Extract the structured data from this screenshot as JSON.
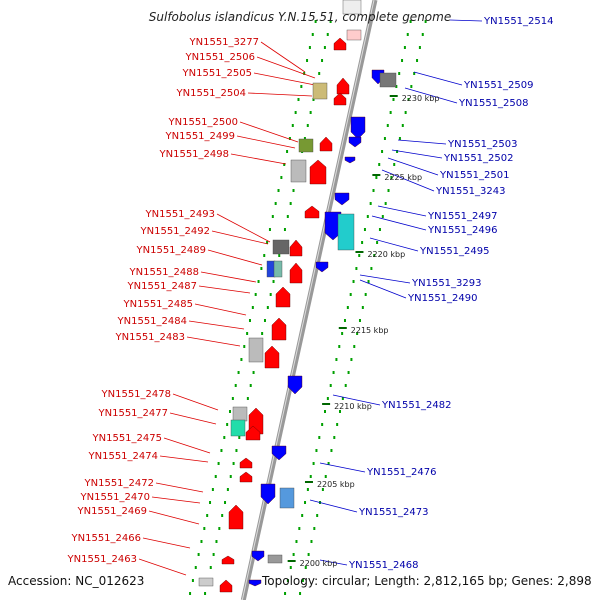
{
  "title": "Sulfobolus islandicus Y.N.15.51, complete genome",
  "footer": {
    "accession": "Accession: NC_012623",
    "topology": "Topology: circular; Length: 2,812,165 bp; Genes: 2,898"
  },
  "scale_labels": [
    "2230 kbp",
    "2225 kbp",
    "2220 kbp",
    "2215 kbp",
    "2210 kbp",
    "2205 kbp",
    "2200 kbp"
  ],
  "colors": {
    "forward": "#ff0000",
    "reverse": "#0000ff",
    "backbone": "#999999",
    "ticks": "#008800"
  },
  "left_labels": [
    "YN1551_3277",
    "YN1551_2506",
    "YN1551_2505",
    "YN1551_2504",
    "YN1551_2500",
    "YN1551_2499",
    "YN1551_2498",
    "YN1551_2493",
    "YN1551_2492",
    "YN1551_2489",
    "YN1551_2488",
    "YN1551_2487",
    "YN1551_2485",
    "YN1551_2484",
    "YN1551_2483",
    "YN1551_2478",
    "YN1551_2477",
    "YN1551_2475",
    "YN1551_2474",
    "YN1551_2472",
    "YN1551_2470",
    "YN1551_2469",
    "YN1551_2466",
    "YN1551_2463"
  ],
  "right_labels": [
    "YN1551_2514",
    "YN1551_2509",
    "YN1551_2508",
    "YN1551_2503",
    "YN1551_2502",
    "YN1551_2501",
    "YN1551_3243",
    "YN1551_2497",
    "YN1551_2496",
    "YN1551_2495",
    "YN1551_3293",
    "YN1551_2490",
    "YN1551_2482",
    "YN1551_2476",
    "YN1551_2473",
    "YN1551_2468"
  ]
}
